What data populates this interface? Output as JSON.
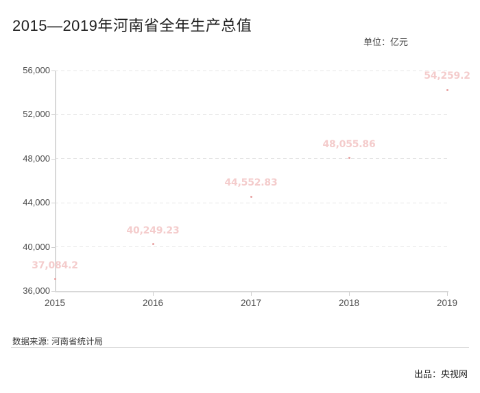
{
  "title": "2015—2019年河南省全年生产总值",
  "unit_label": "单位：亿元",
  "source_label": "数据来源: 河南省统计局",
  "producer_label": "出品：央视网",
  "colors": {
    "data_label": "#f4cccc",
    "data_point": "#e8a2a2",
    "axis_line": "#d8d8d8",
    "gridline": "#e5e5e5",
    "tick_text": "#4a4a4a"
  },
  "chart_data": {
    "type": "line",
    "title": "2015—2019年河南省全年生产总值",
    "ylabel": "亿元",
    "xlabel": "",
    "categories": [
      "2015",
      "2016",
      "2017",
      "2018",
      "2019"
    ],
    "values": [
      37084.2,
      40249.23,
      44552.83,
      48055.86,
      54259.2
    ],
    "value_labels": [
      "37,084.2",
      "40,249.23",
      "44,552.83",
      "48,055.86",
      "54,259.2"
    ],
    "ylim": [
      36000,
      56000
    ],
    "yticks": [
      {
        "value": 36000,
        "label": "36,000"
      },
      {
        "value": 40000,
        "label": "40,000"
      },
      {
        "value": 44000,
        "label": "44,000"
      },
      {
        "value": 48000,
        "label": "48,000"
      },
      {
        "value": 52000,
        "label": "52,000"
      },
      {
        "value": 56000,
        "label": "56,000"
      }
    ],
    "grid": "horizontal-dashed",
    "legend_position": "none"
  }
}
